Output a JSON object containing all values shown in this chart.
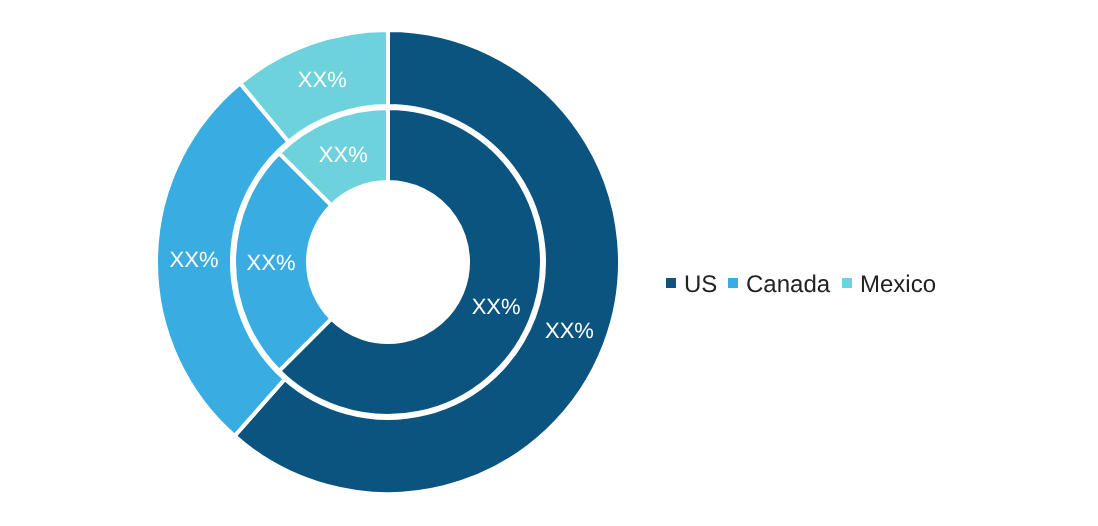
{
  "chart_data": {
    "type": "donut",
    "categories": [
      "US",
      "Canada",
      "Mexico"
    ],
    "colors": [
      "#0b5480",
      "#39ade2",
      "#6dd2db"
    ],
    "legend": "right",
    "series": [
      {
        "values": [
          61.5,
          27.5,
          11
        ],
        "value_labels": [
          "XX%",
          "XX%",
          "XX%"
        ]
      },
      {
        "values": [
          62.5,
          25,
          12.5
        ],
        "value_labels": [
          "XX%",
          "XX%",
          "XX%"
        ]
      }
    ]
  }
}
